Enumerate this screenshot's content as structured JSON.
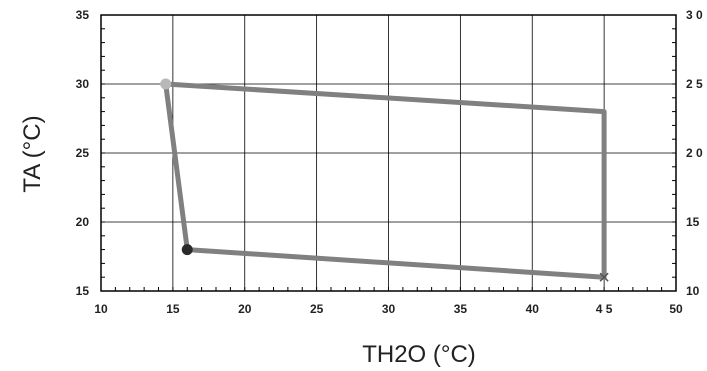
{
  "chart_data": {
    "type": "line",
    "title": "",
    "xlabel": "TH2O (°C)",
    "ylabel": "TA (°C)",
    "xlim": [
      10,
      50
    ],
    "ylim": [
      15,
      35
    ],
    "y2lim": [
      10,
      30
    ],
    "xticks": [
      10,
      15,
      20,
      25,
      30,
      35,
      40,
      45,
      50
    ],
    "xtick_labels": [
      "10",
      "15",
      "20",
      "25",
      "30",
      "35",
      "40",
      "4 5",
      "50"
    ],
    "yticks": [
      15,
      20,
      25,
      30,
      35
    ],
    "ytick_labels": [
      "15",
      "20",
      "25",
      "30",
      "35"
    ],
    "y2ticks": [
      10,
      15,
      20,
      25,
      30
    ],
    "y2tick_labels": [
      "10",
      "15",
      "2 0",
      "2 5",
      "3 0"
    ],
    "grid": true,
    "series": [
      {
        "points": [
          {
            "x": 14.5,
            "y": 30
          },
          {
            "x": 45.0,
            "y": 28
          },
          {
            "x": 45.0,
            "y": 16
          },
          {
            "x": 16.0,
            "y": 18
          },
          {
            "x": 14.5,
            "y": 30
          }
        ],
        "color": "#808080"
      }
    ],
    "markers": [
      {
        "x": 14.5,
        "y": 30,
        "shape": "circle",
        "color": "#b8b8b8"
      },
      {
        "x": 16.0,
        "y": 18,
        "shape": "circle",
        "color": "#2a2a2a"
      },
      {
        "x": 45.0,
        "y": 16,
        "shape": "x",
        "color": "#555555"
      }
    ],
    "colors": {
      "grid": "#000000",
      "frame": "#000000",
      "line": "#808080",
      "text": "#222222"
    }
  }
}
